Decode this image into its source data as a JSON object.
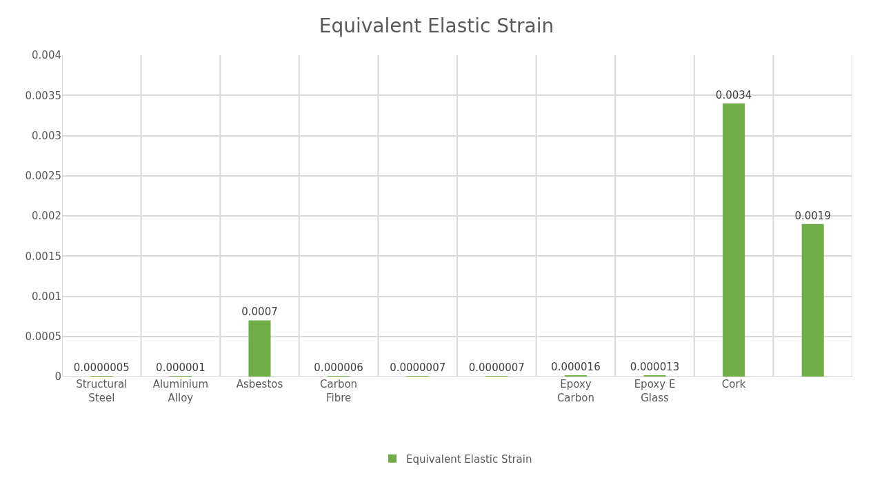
{
  "chart_data": {
    "type": "bar",
    "title": "Equivalent Elastic Strain",
    "categories": [
      "Structural Steel",
      "Aluminium Alloy",
      "Asbestos",
      "Carbon Fibre",
      null,
      null,
      "Epoxy Carbon",
      "Epoxy E Glass",
      "Cork",
      null
    ],
    "series": [
      {
        "name": "Equivalent Elastic Strain",
        "color": "#70ad47",
        "values": [
          5e-07,
          1e-06,
          0.0007,
          6e-06,
          7e-07,
          7e-07,
          1.6e-05,
          1.3e-05,
          0.0034,
          0.0019
        ],
        "value_labels": [
          "0.0000005",
          "0.000001",
          "0.0007",
          "0.000006",
          "0.0000007",
          "0.0000007",
          "0.000016",
          "0.000013",
          "0.0034",
          "0.0019"
        ]
      }
    ],
    "ylim": [
      0,
      0.004
    ],
    "yticks": [
      0,
      0.0005,
      0.001,
      0.0015,
      0.002,
      0.0025,
      0.003,
      0.0035,
      0.004
    ],
    "grid": true,
    "legend": "bottom"
  }
}
